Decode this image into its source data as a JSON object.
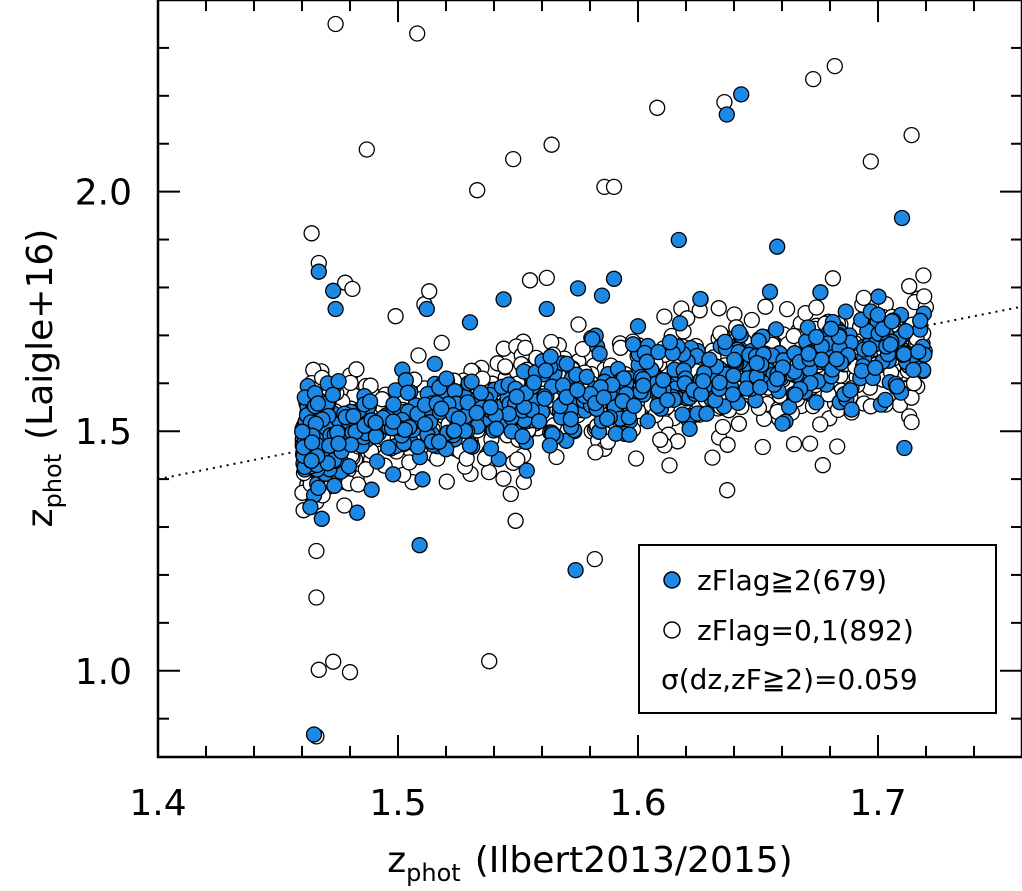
{
  "chart_data": {
    "type": "scatter",
    "xlabel": {
      "main": "z",
      "sub": "phot",
      "rest": "(Ilbert2013/2015)"
    },
    "ylabel": {
      "main": "z",
      "sub": "phot",
      "rest": "(Laigle+16)"
    },
    "xlim": [
      1.4,
      1.76
    ],
    "ylim": [
      0.82,
      2.4
    ],
    "x_ticks": [
      1.4,
      1.5,
      1.6,
      1.7
    ],
    "x_tick_labels": [
      "1.4",
      "1.5",
      "1.6",
      "1.7"
    ],
    "y_ticks": [
      1.0,
      1.5,
      2.0
    ],
    "y_tick_labels": [
      "1.0",
      "1.5",
      "2.0"
    ],
    "reference_line": {
      "style": "dotted",
      "points": [
        [
          1.4,
          1.4
        ],
        [
          1.76,
          1.76
        ]
      ]
    },
    "legend": {
      "position": "bottom-right",
      "entries": [
        {
          "marker": "filled",
          "label": "zFlag≧2(679)"
        },
        {
          "marker": "open",
          "label": "zFlag=0,1(892)"
        },
        {
          "marker": "none",
          "label": "σ(dz,zF≧2)=0.059"
        }
      ]
    },
    "colors": {
      "filled": "#1e88e5",
      "edge": "#000000",
      "open": "#ffffff",
      "line": "#000000"
    },
    "series": [
      {
        "name": "zFlag≧2",
        "style": "filled",
        "count": 679,
        "x": [
          1.465,
          1.574,
          1.509,
          1.483,
          1.637,
          1.643,
          1.71,
          1.617,
          1.59,
          1.658,
          1.467,
          1.473,
          1.474,
          1.512,
          1.53,
          1.544,
          1.562,
          1.575,
          1.585,
          1.6,
          1.626,
          1.655,
          1.676,
          1.689,
          1.711,
          1.53,
          1.541,
          1.572,
          1.498,
          1.489
        ],
        "y": [
          0.867,
          1.21,
          1.262,
          1.33,
          2.161,
          2.203,
          1.945,
          1.899,
          1.818,
          1.885,
          1.833,
          1.793,
          1.755,
          1.755,
          1.727,
          1.775,
          1.755,
          1.798,
          1.783,
          1.719,
          1.776,
          1.791,
          1.79,
          1.545,
          1.465,
          1.47,
          1.505,
          1.525,
          1.52,
          1.378
        ]
      },
      {
        "name": "zFlag=0,1",
        "style": "open",
        "count": 892,
        "x": [
          1.474,
          1.508,
          1.487,
          1.548,
          1.533,
          1.564,
          1.586,
          1.59,
          1.608,
          1.636,
          1.673,
          1.682,
          1.697,
          1.714,
          1.464,
          1.467,
          1.478,
          1.481,
          1.499,
          1.511,
          1.513,
          1.555,
          1.562,
          1.547,
          1.582,
          1.549,
          1.538,
          1.466,
          1.467,
          1.473,
          1.48,
          1.466,
          1.466,
          1.631,
          1.652,
          1.665,
          1.677,
          1.683,
          1.689,
          1.697,
          1.713,
          1.714,
          1.715
        ],
        "y": [
          2.35,
          2.33,
          2.088,
          2.068,
          2.003,
          2.098,
          2.01,
          2.01,
          2.175,
          2.187,
          2.235,
          2.262,
          2.063,
          2.118,
          1.913,
          1.851,
          1.81,
          1.797,
          1.74,
          1.765,
          1.792,
          1.815,
          1.82,
          1.369,
          1.233,
          1.313,
          1.02,
          1.25,
          1.002,
          1.019,
          0.997,
          1.153,
          0.863,
          1.445,
          1.467,
          1.473,
          1.429,
          1.468,
          1.539,
          1.552,
          1.531,
          1.519,
          1.6
        ]
      }
    ],
    "dense_cloud": {
      "note": "remaining ~1500 points form a band along the 1:1 line",
      "x_range": [
        1.46,
        1.72
      ],
      "filled_count": 679,
      "open_count": 892,
      "filled_scatter_sd": 0.045,
      "open_scatter_sd": 0.06
    }
  }
}
